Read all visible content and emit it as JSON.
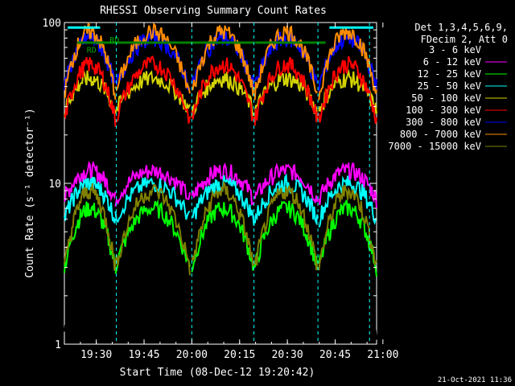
{
  "chart_data": {
    "type": "line",
    "title": "RHESSI Observing Summary Count Rates",
    "xlabel": "Start Time (08-Dec-12 19:20:42)",
    "ylabel": "Count Rate (s⁻¹ detector⁻¹)",
    "yscale": "log",
    "ylim": [
      1,
      100
    ],
    "xlim_minutes": [
      19.333,
      20.967
    ],
    "x_tick_labels": [
      "19:30",
      "19:45",
      "20:00",
      "20:15",
      "20:30",
      "20:45",
      "21:00"
    ],
    "x_tick_values": [
      19.5,
      19.75,
      20.0,
      20.25,
      20.5,
      20.75,
      21.0
    ],
    "y_tick_labels": [
      "1",
      "10",
      "100"
    ],
    "y_tick_values": [
      1,
      10,
      100
    ],
    "legend_header": [
      "Det 1,3,4,5,6,9,",
      "FDecim 2, Att 0"
    ],
    "legend_placement": "right",
    "series": [
      {
        "name": "3 - 6 keV",
        "color": "#000000"
      },
      {
        "name": "6 - 12 keV",
        "color": "#ff00ff"
      },
      {
        "name": "12 - 25 keV",
        "color": "#00ff00"
      },
      {
        "name": "25 - 50 keV",
        "color": "#00ffff"
      },
      {
        "name": "50 - 100 keV",
        "color": "#d4d400"
      },
      {
        "name": "100 - 300 keV",
        "color": "#ff0000"
      },
      {
        "name": "300 - 800 keV",
        "color": "#0000ff"
      },
      {
        "name": "800 - 7000 keV",
        "color": "#ff8c00"
      },
      {
        "name": "7000 - 15000 keV",
        "color": "#808000"
      }
    ],
    "annotations": [
      "RD",
      "RD"
    ],
    "footer": "21-Oct-2021 11:36"
  }
}
